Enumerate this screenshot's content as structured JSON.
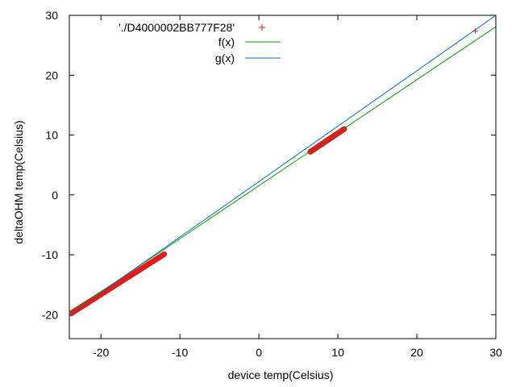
{
  "chart_data": {
    "type": "scatter",
    "xlabel": "device temp(Celsius)",
    "ylabel": "deltaOHM temp(Celsius)",
    "xlim": [
      -24,
      30
    ],
    "ylim": [
      -24,
      30
    ],
    "x_ticks": [
      -20,
      -10,
      0,
      10,
      20,
      30
    ],
    "y_ticks": [
      -20,
      -10,
      0,
      10,
      20,
      30
    ],
    "grid": false,
    "legend_position": "top-center",
    "series": [
      {
        "name": "'./D4000002BB777F28'",
        "kind": "points",
        "marker": "+",
        "color": "#e31a1c",
        "clusters": [
          {
            "x_range": [
              -23.8,
              -12.0
            ],
            "y_range": [
              -19.8,
              -9.9
            ]
          },
          {
            "x_range": [
              6.5,
              10.8
            ],
            "y_range": [
              7.2,
              11.0
            ]
          }
        ],
        "points": [
          [
            -23.6,
            -19.6
          ],
          [
            -23.2,
            -19.3
          ],
          [
            -22.8,
            -19.1
          ],
          [
            -22.4,
            -18.7
          ],
          [
            -22.0,
            -18.4
          ],
          [
            -21.6,
            -18.0
          ],
          [
            -21.2,
            -17.6
          ],
          [
            -20.8,
            -17.3
          ],
          [
            -20.4,
            -17.0
          ],
          [
            -20.0,
            -16.6
          ],
          [
            -19.6,
            -16.3
          ],
          [
            -19.2,
            -16.0
          ],
          [
            -18.8,
            -15.6
          ],
          [
            -18.4,
            -15.3
          ],
          [
            -18.0,
            -14.9
          ],
          [
            -17.6,
            -14.6
          ],
          [
            -17.2,
            -14.2
          ],
          [
            -16.8,
            -13.9
          ],
          [
            -16.4,
            -13.6
          ],
          [
            -16.0,
            -13.3
          ],
          [
            -15.6,
            -12.9
          ],
          [
            -15.2,
            -12.6
          ],
          [
            -14.8,
            -12.3
          ],
          [
            -14.4,
            -11.9
          ],
          [
            -14.0,
            -11.6
          ],
          [
            -13.6,
            -11.3
          ],
          [
            -13.2,
            -10.9
          ],
          [
            -12.8,
            -10.6
          ],
          [
            -12.4,
            -10.3
          ],
          [
            -12.1,
            -10.0
          ],
          [
            6.6,
            7.3
          ],
          [
            7.0,
            7.7
          ],
          [
            7.4,
            8.1
          ],
          [
            7.8,
            8.4
          ],
          [
            8.2,
            8.8
          ],
          [
            8.6,
            9.2
          ],
          [
            9.0,
            9.5
          ],
          [
            9.4,
            9.9
          ],
          [
            9.8,
            10.2
          ],
          [
            10.2,
            10.6
          ],
          [
            10.6,
            10.9
          ],
          [
            27.4,
            27.4
          ]
        ]
      },
      {
        "name": "f(x)",
        "kind": "line",
        "color": "#00a000",
        "x": [
          -24,
          30
        ],
        "y": [
          -19.7,
          28.1
        ]
      },
      {
        "name": "g(x)",
        "kind": "line",
        "color": "#0072bd",
        "x": [
          -24,
          30
        ],
        "y": [
          -20.0,
          30.0
        ]
      }
    ]
  }
}
